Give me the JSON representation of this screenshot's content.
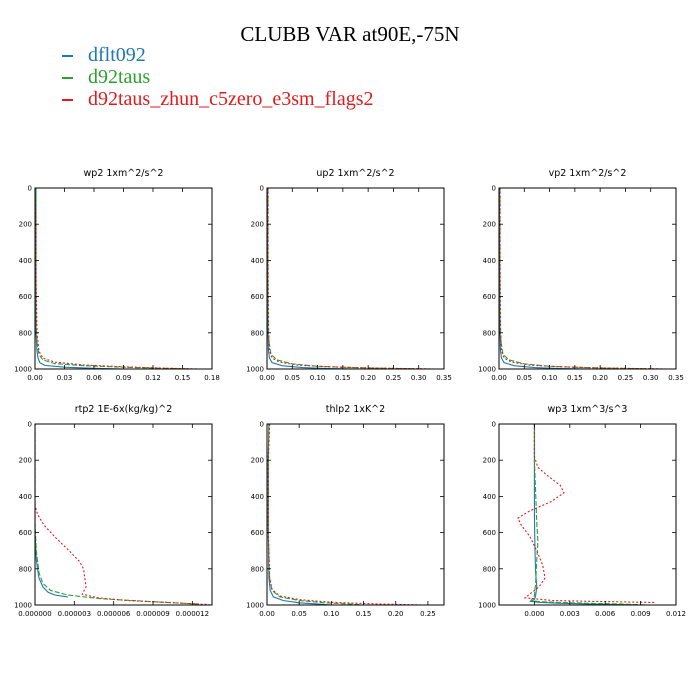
{
  "page_title": "CLUBB VAR at90E,-75N",
  "legend": [
    {
      "name": "dflt092",
      "color": "#1f77b4"
    },
    {
      "name": "d92taus",
      "color": "#2ca02c"
    },
    {
      "name": "d92taus_zhun_c5zero_e3sm_flags2",
      "color": "#e31a1c"
    }
  ],
  "chart_data": [
    {
      "type": "line",
      "title": "wp2  1xm^2/s^2",
      "xlim": [
        0,
        0.18
      ],
      "ylim": [
        1000,
        0
      ],
      "xticks": [
        0,
        0.03,
        0.06,
        0.09,
        0.12,
        0.15,
        0.18
      ],
      "xtick_labels": [
        "0.00",
        "0.03",
        "0.06",
        "0.09",
        "0.12",
        "0.15",
        "0.18"
      ],
      "yticks": [
        0,
        200,
        400,
        600,
        800,
        1000
      ],
      "ytick_labels": [
        "0",
        "200",
        "400",
        "600",
        "800",
        "1000"
      ],
      "series": [
        {
          "name": "dflt092",
          "x": [
            0.001,
            0.001,
            0.002,
            0.003,
            0.005,
            0.01,
            0.03,
            0.06,
            0.09
          ],
          "y": [
            0,
            800,
            900,
            940,
            965,
            980,
            990,
            996,
            1000
          ]
        },
        {
          "name": "d92taus",
          "x": [
            0.001,
            0.001,
            0.002,
            0.004,
            0.008,
            0.02,
            0.05,
            0.09,
            0.13,
            0.16
          ],
          "y": [
            0,
            700,
            850,
            920,
            950,
            970,
            982,
            990,
            996,
            1000
          ]
        },
        {
          "name": "d92taus_zhun_c5zero_e3sm_flags2",
          "x": [
            0.0,
            0.001,
            0.001,
            0.002,
            0.004,
            0.008,
            0.02,
            0.05,
            0.09,
            0.13,
            0.165
          ],
          "y": [
            0,
            200,
            500,
            800,
            900,
            940,
            962,
            978,
            988,
            995,
            1000
          ]
        }
      ]
    },
    {
      "type": "line",
      "title": "up2  1xm^2/s^2",
      "xlim": [
        0,
        0.35
      ],
      "ylim": [
        1000,
        0
      ],
      "xticks": [
        0,
        0.05,
        0.1,
        0.15,
        0.2,
        0.25,
        0.3,
        0.35
      ],
      "xtick_labels": [
        "0.00",
        "0.05",
        "0.10",
        "0.15",
        "0.20",
        "0.25",
        "0.30",
        "0.35"
      ],
      "yticks": [
        0,
        200,
        400,
        600,
        800,
        1000
      ],
      "ytick_labels": [
        "0",
        "200",
        "400",
        "600",
        "800",
        "1000"
      ],
      "series": [
        {
          "name": "dflt092",
          "x": [
            0.001,
            0.002,
            0.003,
            0.005,
            0.01,
            0.03,
            0.07,
            0.12,
            0.18
          ],
          "y": [
            0,
            800,
            900,
            940,
            965,
            982,
            992,
            997,
            1000
          ]
        },
        {
          "name": "d92taus",
          "x": [
            0.002,
            0.002,
            0.004,
            0.008,
            0.02,
            0.05,
            0.1,
            0.18,
            0.26,
            0.32
          ],
          "y": [
            0,
            700,
            850,
            920,
            950,
            972,
            985,
            993,
            997,
            1000
          ]
        },
        {
          "name": "d92taus_zhun_c5zero_e3sm_flags2",
          "x": [
            0.002,
            0.002,
            0.003,
            0.005,
            0.01,
            0.025,
            0.06,
            0.12,
            0.2,
            0.28,
            0.33
          ],
          "y": [
            0,
            400,
            800,
            900,
            940,
            962,
            978,
            988,
            994,
            998,
            1000
          ]
        }
      ]
    },
    {
      "type": "line",
      "title": "vp2  1xm^2/s^2",
      "xlim": [
        0,
        0.35
      ],
      "ylim": [
        1000,
        0
      ],
      "xticks": [
        0,
        0.05,
        0.1,
        0.15,
        0.2,
        0.25,
        0.3,
        0.35
      ],
      "xtick_labels": [
        "0.00",
        "0.05",
        "0.10",
        "0.15",
        "0.20",
        "0.25",
        "0.30",
        "0.35"
      ],
      "yticks": [
        0,
        200,
        400,
        600,
        800,
        1000
      ],
      "ytick_labels": [
        "0",
        "200",
        "400",
        "600",
        "800",
        "1000"
      ],
      "series": [
        {
          "name": "dflt092",
          "x": [
            0.001,
            0.002,
            0.003,
            0.005,
            0.01,
            0.03,
            0.07,
            0.12,
            0.18
          ],
          "y": [
            0,
            800,
            900,
            940,
            965,
            982,
            992,
            997,
            1000
          ]
        },
        {
          "name": "d92taus",
          "x": [
            0.002,
            0.002,
            0.004,
            0.008,
            0.02,
            0.05,
            0.1,
            0.18,
            0.26,
            0.32
          ],
          "y": [
            0,
            700,
            850,
            920,
            950,
            972,
            985,
            993,
            997,
            1000
          ]
        },
        {
          "name": "d92taus_zhun_c5zero_e3sm_flags2",
          "x": [
            0.002,
            0.002,
            0.003,
            0.005,
            0.01,
            0.025,
            0.06,
            0.12,
            0.2,
            0.28,
            0.33
          ],
          "y": [
            0,
            400,
            800,
            900,
            940,
            962,
            978,
            988,
            994,
            998,
            1000
          ]
        }
      ]
    },
    {
      "type": "line",
      "title": "rtp2  1E-6x(kg/kg)^2",
      "xlim": [
        0,
        1.35e-05
      ],
      "ylim": [
        1000,
        0
      ],
      "xticks": [
        0,
        3e-06,
        6e-06,
        9e-06,
        1.2e-05
      ],
      "xtick_labels": [
        "0.000000",
        "0.000003",
        "0.000006",
        "0.000009",
        "0.000012"
      ],
      "yticks": [
        0,
        200,
        400,
        600,
        800,
        1000
      ],
      "ytick_labels": [
        "0",
        "200",
        "400",
        "600",
        "800",
        "1000"
      ],
      "series": [
        {
          "name": "dflt092",
          "x": [
            0,
            0,
            1e-07,
            3e-07,
            6e-07,
            1e-06,
            1.5e-06,
            2.5e-06
          ],
          "y": [
            0,
            600,
            750,
            850,
            900,
            930,
            945,
            955
          ]
        },
        {
          "name": "d92taus",
          "x": [
            0,
            0,
            1e-07,
            3e-07,
            6e-07,
            1.2e-06,
            2.5e-06,
            5e-06,
            9e-06,
            1.25e-05
          ],
          "y": [
            0,
            550,
            700,
            820,
            880,
            920,
            945,
            965,
            982,
            995
          ]
        },
        {
          "name": "d92taus_zhun_c5zero_e3sm_flags2",
          "x": [
            0,
            0,
            2e-07,
            7e-07,
            1.6e-06,
            2.6e-06,
            3.4e-06,
            3.7e-06,
            3.8e-06,
            3.9e-06,
            3.6e-06,
            4.8e-06,
            7e-06,
            1e-05,
            1.33e-05
          ],
          "y": [
            0,
            450,
            500,
            560,
            630,
            700,
            760,
            800,
            850,
            900,
            940,
            960,
            975,
            985,
            998
          ]
        }
      ]
    },
    {
      "type": "line",
      "title": "thlp2  1xK^2",
      "xlim": [
        0,
        0.275
      ],
      "ylim": [
        1000,
        0
      ],
      "xticks": [
        0,
        0.05,
        0.1,
        0.15,
        0.2,
        0.25
      ],
      "xtick_labels": [
        "0.00",
        "0.05",
        "0.10",
        "0.15",
        "0.20",
        "0.25"
      ],
      "yticks": [
        0,
        200,
        400,
        600,
        800,
        1000
      ],
      "ytick_labels": [
        "0",
        "200",
        "400",
        "600",
        "800",
        "1000"
      ],
      "series": [
        {
          "name": "dflt092",
          "x": [
            0.003,
            0.002,
            0.002,
            0.003,
            0.005,
            0.01,
            0.025,
            0.05,
            0.08,
            0.1
          ],
          "y": [
            0,
            200,
            600,
            850,
            920,
            955,
            975,
            988,
            995,
            1000
          ]
        },
        {
          "name": "d92taus",
          "x": [
            0.003,
            0.002,
            0.002,
            0.004,
            0.008,
            0.02,
            0.05,
            0.09,
            0.13,
            0.15
          ],
          "y": [
            0,
            200,
            600,
            850,
            920,
            955,
            975,
            988,
            995,
            1000
          ]
        },
        {
          "name": "d92taus_zhun_c5zero_e3sm_flags2",
          "x": [
            0.004,
            0.002,
            0.002,
            0.004,
            0.008,
            0.02,
            0.05,
            0.1,
            0.17,
            0.24
          ],
          "y": [
            0,
            200,
            600,
            850,
            915,
            950,
            970,
            985,
            994,
            1000
          ]
        }
      ]
    },
    {
      "type": "line",
      "title": "wp3  1xm^3/s^3",
      "xlim": [
        -0.003,
        0.012
      ],
      "ylim": [
        1000,
        0
      ],
      "xticks": [
        0,
        0.003,
        0.006,
        0.009,
        0.012
      ],
      "xtick_labels": [
        "0.000",
        "0.003",
        "0.006",
        "0.009",
        "0.012"
      ],
      "yticks": [
        0,
        200,
        400,
        600,
        800,
        1000
      ],
      "ytick_labels": [
        "0",
        "200",
        "400",
        "600",
        "800",
        "1000"
      ],
      "series": [
        {
          "name": "dflt092",
          "x": [
            0,
            0,
            5e-05,
            0.0001,
            0.0002,
            0.0001,
            0,
            -0.0003,
            0.0004,
            0.002,
            0.005,
            0.009
          ],
          "y": [
            0,
            500,
            700,
            820,
            900,
            950,
            970,
            980,
            985,
            990,
            995,
            1000
          ]
        },
        {
          "name": "d92taus",
          "x": [
            0,
            0,
            0.0002,
            0.0003,
            0.0002,
            0.0001,
            0,
            -0.0003,
            0.0005,
            0.003,
            0.007,
            0.0095
          ],
          "y": [
            0,
            200,
            550,
            650,
            750,
            880,
            950,
            975,
            982,
            988,
            994,
            1000
          ]
        },
        {
          "name": "d92taus_zhun_c5zero_e3sm_flags2",
          "x": [
            0,
            0,
            0.0003,
            0.0012,
            0.0022,
            0.0025,
            0.0014,
            -0.0004,
            -0.0014,
            -0.0011,
            -0.0004,
            0.0002,
            0.0007,
            0.0009,
            0.0004,
            -0.0008,
            0.0015,
            0.005,
            0.0085,
            0.0102
          ],
          "y": [
            0,
            180,
            240,
            290,
            340,
            380,
            430,
            480,
            520,
            560,
            620,
            700,
            780,
            850,
            900,
            960,
            975,
            980,
            984,
            986
          ]
        }
      ]
    }
  ]
}
